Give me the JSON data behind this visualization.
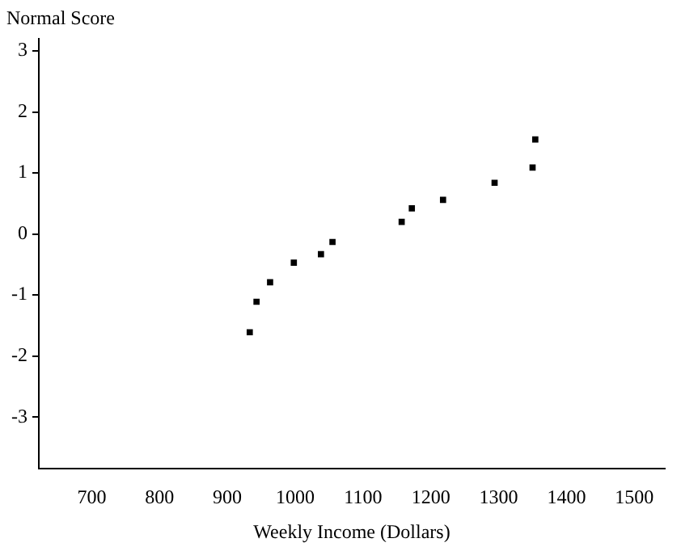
{
  "chart_data": {
    "type": "scatter",
    "xlabel": "Weekly Income (Dollars)",
    "ylabel": "Normal Score",
    "series": [
      {
        "color": "#000000",
        "x": [
          933,
          943,
          963,
          998,
          1038,
          1055,
          1157,
          1172,
          1218,
          1294,
          1350,
          1354
        ],
        "values": [
          -1.61,
          -1.11,
          -0.79,
          -0.47,
          -0.33,
          -0.13,
          0.2,
          0.42,
          0.56,
          0.84,
          1.09,
          1.55
        ]
      }
    ],
    "xlim": [
      622,
      1545
    ],
    "xticks": [
      700,
      800,
      900,
      1000,
      1100,
      1200,
      1300,
      1400,
      1500
    ],
    "ylim": [
      -3.85,
      3.2
    ],
    "yticks": [
      -3,
      -2,
      -1,
      0,
      1,
      2,
      3
    ],
    "grid": false,
    "legend": false,
    "marker": "square"
  }
}
